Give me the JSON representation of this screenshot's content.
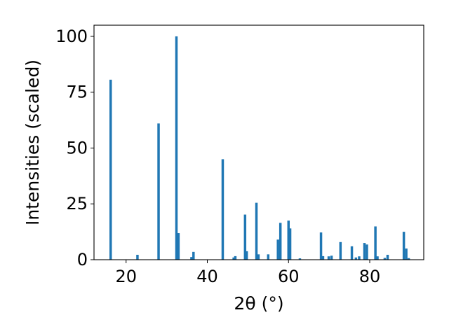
{
  "chart_data": {
    "type": "bar",
    "xlabel": "2θ (°)",
    "ylabel": "Intensities (scaled)",
    "xlim": [
      12.1,
      93.3
    ],
    "ylim": [
      0,
      105
    ],
    "x_ticks": [
      20,
      40,
      60,
      80
    ],
    "y_ticks": [
      0,
      25,
      50,
      75,
      100
    ],
    "grid": false,
    "legend": "none",
    "bar_color": "#1f77b4",
    "bar_width": 0.6,
    "x": [
      16.2,
      22.8,
      28.0,
      32.4,
      32.9,
      36.1,
      36.6,
      43.8,
      46.5,
      46.9,
      49.3,
      49.7,
      52.1,
      52.6,
      55.0,
      57.4,
      58.0,
      60.0,
      60.4,
      62.8,
      68.0,
      68.5,
      69.9,
      70.6,
      72.8,
      75.6,
      76.6,
      77.4,
      78.7,
      79.3,
      81.4,
      81.9,
      83.7,
      84.4,
      88.4,
      89.0,
      89.6
    ],
    "values": [
      80.6,
      2.2,
      61.0,
      100.0,
      11.9,
      1.2,
      3.5,
      45.0,
      1.0,
      1.6,
      20.2,
      3.8,
      25.5,
      2.4,
      2.4,
      9.0,
      16.5,
      17.5,
      14.0,
      0.6,
      12.2,
      1.6,
      1.5,
      1.8,
      7.9,
      6.0,
      1.0,
      1.5,
      7.5,
      6.8,
      14.9,
      1.5,
      0.8,
      2.2,
      12.5,
      5.0,
      0.7
    ]
  }
}
